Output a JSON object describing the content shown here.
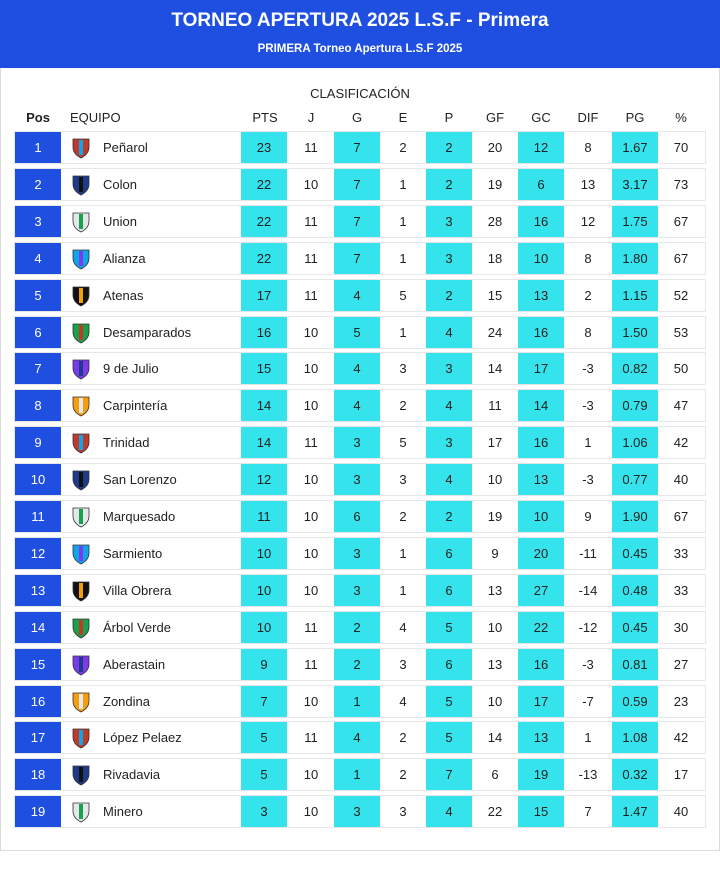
{
  "header": {
    "title": "TORNEO APERTURA 2025 L.S.F - Primera",
    "subtitle": "PRIMERA Torneo Apertura L.S.F 2025"
  },
  "section_title": "CLASIFICACIÓN",
  "columns": {
    "pos": "Pos",
    "team": "EQUIPO",
    "pts": "PTS",
    "j": "J",
    "g": "G",
    "e": "E",
    "p": "P",
    "gf": "GF",
    "gc": "GC",
    "dif": "DIF",
    "pg": "PG",
    "pct": "%"
  },
  "colors": {
    "header_blue": "#1f4fe0",
    "highlight_cyan": "#34e3eb"
  },
  "rows": [
    {
      "pos": "1",
      "team": "Peñarol",
      "badge": "penarol-shield-icon",
      "pts": "23",
      "j": "11",
      "g": "7",
      "e": "2",
      "p": "2",
      "gf": "20",
      "gc": "12",
      "dif": "8",
      "pg": "1.67",
      "pct": "70"
    },
    {
      "pos": "2",
      "team": "Colon",
      "badge": "colon-shield-icon",
      "pts": "22",
      "j": "10",
      "g": "7",
      "e": "1",
      "p": "2",
      "gf": "19",
      "gc": "6",
      "dif": "13",
      "pg": "3.17",
      "pct": "73"
    },
    {
      "pos": "3",
      "team": "Union",
      "badge": "union-shield-icon",
      "pts": "22",
      "j": "11",
      "g": "7",
      "e": "1",
      "p": "3",
      "gf": "28",
      "gc": "16",
      "dif": "12",
      "pg": "1.75",
      "pct": "67"
    },
    {
      "pos": "4",
      "team": "Alianza",
      "badge": "alianza-shield-icon",
      "pts": "22",
      "j": "11",
      "g": "7",
      "e": "1",
      "p": "3",
      "gf": "18",
      "gc": "10",
      "dif": "8",
      "pg": "1.80",
      "pct": "67"
    },
    {
      "pos": "5",
      "team": "Atenas",
      "badge": "atenas-shield-icon",
      "pts": "17",
      "j": "11",
      "g": "4",
      "e": "5",
      "p": "2",
      "gf": "15",
      "gc": "13",
      "dif": "2",
      "pg": "1.15",
      "pct": "52"
    },
    {
      "pos": "6",
      "team": "Desamparados",
      "badge": "desamparados-shield-icon",
      "pts": "16",
      "j": "10",
      "g": "5",
      "e": "1",
      "p": "4",
      "gf": "24",
      "gc": "16",
      "dif": "8",
      "pg": "1.50",
      "pct": "53"
    },
    {
      "pos": "7",
      "team": "9 de Julio",
      "badge": "nueve-de-julio-shield-icon",
      "pts": "15",
      "j": "10",
      "g": "4",
      "e": "3",
      "p": "3",
      "gf": "14",
      "gc": "17",
      "dif": "-3",
      "pg": "0.82",
      "pct": "50"
    },
    {
      "pos": "8",
      "team": "Carpintería",
      "badge": "carpinteria-shield-icon",
      "pts": "14",
      "j": "10",
      "g": "4",
      "e": "2",
      "p": "4",
      "gf": "11",
      "gc": "14",
      "dif": "-3",
      "pg": "0.79",
      "pct": "47"
    },
    {
      "pos": "9",
      "team": "Trinidad",
      "badge": "trinidad-shield-icon",
      "pts": "14",
      "j": "11",
      "g": "3",
      "e": "5",
      "p": "3",
      "gf": "17",
      "gc": "16",
      "dif": "1",
      "pg": "1.06",
      "pct": "42"
    },
    {
      "pos": "10",
      "team": "San Lorenzo",
      "badge": "san-lorenzo-shield-icon",
      "pts": "12",
      "j": "10",
      "g": "3",
      "e": "3",
      "p": "4",
      "gf": "10",
      "gc": "13",
      "dif": "-3",
      "pg": "0.77",
      "pct": "40"
    },
    {
      "pos": "11",
      "team": "Marquesado",
      "badge": "marquesado-shield-icon",
      "pts": "11",
      "j": "10",
      "g": "6",
      "e": "2",
      "p": "2",
      "gf": "19",
      "gc": "10",
      "dif": "9",
      "pg": "1.90",
      "pct": "67"
    },
    {
      "pos": "12",
      "team": "Sarmiento",
      "badge": "sarmiento-shield-icon",
      "pts": "10",
      "j": "10",
      "g": "3",
      "e": "1",
      "p": "6",
      "gf": "9",
      "gc": "20",
      "dif": "-11",
      "pg": "0.45",
      "pct": "33"
    },
    {
      "pos": "13",
      "team": "Villa Obrera",
      "badge": "villa-obrera-shield-icon",
      "pts": "10",
      "j": "10",
      "g": "3",
      "e": "1",
      "p": "6",
      "gf": "13",
      "gc": "27",
      "dif": "-14",
      "pg": "0.48",
      "pct": "33"
    },
    {
      "pos": "14",
      "team": "Árbol Verde",
      "badge": "arbol-verde-shield-icon",
      "pts": "10",
      "j": "11",
      "g": "2",
      "e": "4",
      "p": "5",
      "gf": "10",
      "gc": "22",
      "dif": "-12",
      "pg": "0.45",
      "pct": "30"
    },
    {
      "pos": "15",
      "team": "Aberastain",
      "badge": "aberastain-shield-icon",
      "pts": "9",
      "j": "11",
      "g": "2",
      "e": "3",
      "p": "6",
      "gf": "13",
      "gc": "16",
      "dif": "-3",
      "pg": "0.81",
      "pct": "27"
    },
    {
      "pos": "16",
      "team": "Zondina",
      "badge": "zondina-shield-icon",
      "pts": "7",
      "j": "10",
      "g": "1",
      "e": "4",
      "p": "5",
      "gf": "10",
      "gc": "17",
      "dif": "-7",
      "pg": "0.59",
      "pct": "23"
    },
    {
      "pos": "17",
      "team": "López Pelaez",
      "badge": "lopez-pelaez-shield-icon",
      "pts": "5",
      "j": "11",
      "g": "4",
      "e": "2",
      "p": "5",
      "gf": "14",
      "gc": "13",
      "dif": "1",
      "pg": "1.08",
      "pct": "42"
    },
    {
      "pos": "18",
      "team": "Rivadavia",
      "badge": "rivadavia-shield-icon",
      "pts": "5",
      "j": "10",
      "g": "1",
      "e": "2",
      "p": "7",
      "gf": "6",
      "gc": "19",
      "dif": "-13",
      "pg": "0.32",
      "pct": "17"
    },
    {
      "pos": "19",
      "team": "Minero",
      "badge": "minero-shield-icon",
      "pts": "3",
      "j": "10",
      "g": "3",
      "e": "3",
      "p": "4",
      "gf": "22",
      "gc": "15",
      "dif": "7",
      "pg": "1.47",
      "pct": "40"
    }
  ]
}
